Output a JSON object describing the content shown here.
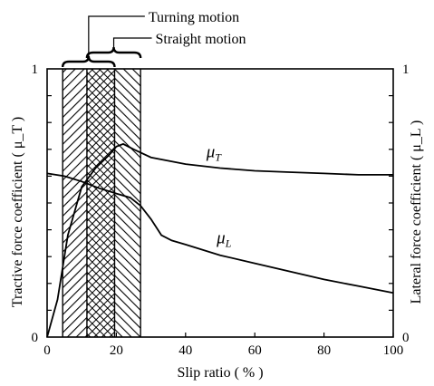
{
  "chart_data": {
    "type": "line",
    "xlabel": "Slip ratio ( % )",
    "ylabel_left": "Tractive force coefficient ( μ_T )",
    "ylabel_right": "Lateral force coefficient ( μ_L )",
    "xlim": [
      0,
      100
    ],
    "ylim": [
      0,
      1
    ],
    "x_ticks": [
      0,
      20,
      40,
      60,
      80,
      100
    ],
    "y_ticks_left_labels": [
      {
        "value": 0,
        "label": "0"
      },
      {
        "value": 1,
        "label": "1"
      }
    ],
    "y_ticks_right_labels": [
      {
        "value": 0,
        "label": "0"
      },
      {
        "value": 1,
        "label": "1"
      }
    ],
    "series": [
      {
        "name": "μ_T",
        "label_main": "μ",
        "label_sub": "T",
        "x": [
          0,
          3,
          6,
          10,
          14,
          18,
          20,
          22,
          25,
          30,
          40,
          50,
          60,
          70,
          80,
          90,
          100
        ],
        "y": [
          0.0,
          0.14,
          0.38,
          0.56,
          0.63,
          0.68,
          0.71,
          0.72,
          0.7,
          0.67,
          0.645,
          0.63,
          0.62,
          0.615,
          0.61,
          0.605,
          0.605
        ]
      },
      {
        "name": "μ_L",
        "label_main": "μ",
        "label_sub": "L",
        "x": [
          0,
          5,
          10,
          15,
          20,
          24,
          27,
          30,
          33,
          36,
          40,
          50,
          60,
          70,
          80,
          90,
          100
        ],
        "y": [
          0.61,
          0.6,
          0.58,
          0.555,
          0.535,
          0.52,
          0.49,
          0.44,
          0.38,
          0.36,
          0.345,
          0.305,
          0.275,
          0.245,
          0.215,
          0.19,
          0.165
        ]
      }
    ],
    "regions": [
      {
        "name": "Turning motion",
        "x_range": [
          4.5,
          19.5
        ],
        "hatch": "diagonal"
      },
      {
        "name": "Straight motion",
        "x_range": [
          11.5,
          27
        ],
        "hatch": "diagonal-reverse"
      }
    ],
    "overlap_hatch": "crosshatch",
    "grid": false
  }
}
